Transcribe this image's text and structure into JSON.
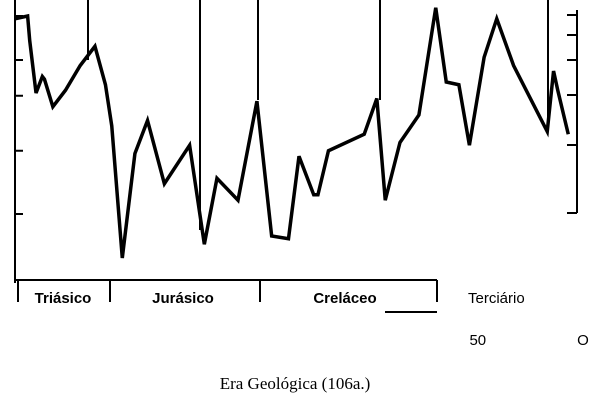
{
  "chart_data": {
    "type": "line",
    "title": "Era Geológica (106a.)",
    "eras": [
      "Triásico",
      "Jurásico",
      "Creláceo",
      "Terciário"
    ],
    "x": [
      270,
      264,
      263,
      260,
      257,
      256,
      252,
      246,
      239,
      232,
      227,
      224,
      219,
      213,
      207,
      199,
      187,
      180,
      174,
      164,
      155,
      148,
      140,
      135,
      128,
      126,
      121,
      104,
      98,
      94,
      87,
      78,
      70,
      65,
      59,
      54,
      47,
      41,
      33,
      17,
      14,
      12,
      7
    ],
    "series": [
      {
        "color": "#000000",
        "values": [
          95,
          96,
          87,
          68,
          74,
          73,
          63,
          69,
          78,
          85,
          71,
          56,
          8,
          46,
          58,
          35,
          49,
          13,
          37,
          29,
          65,
          16,
          15,
          45,
          31,
          31,
          47,
          53,
          66,
          29,
          50,
          60,
          99,
          72,
          71,
          49,
          81,
          95,
          78,
          54,
          76,
          69,
          53
        ]
      }
    ],
    "xlim": [
      270,
      0
    ],
    "xticks": [
      50,
      {
        "value": 0,
        "label": "O"
      }
    ],
    "ylim": [
      0,
      100
    ],
    "yticks": [
      96,
      80,
      67,
      47,
      24
    ]
  }
}
